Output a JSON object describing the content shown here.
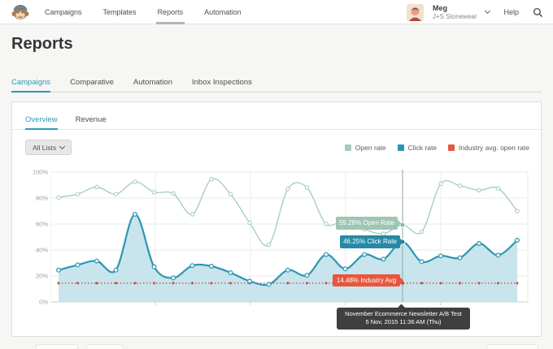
{
  "header": {
    "logo": "mailchimp-freddie",
    "nav": [
      {
        "label": "Campaigns",
        "active": false
      },
      {
        "label": "Templates",
        "active": false
      },
      {
        "label": "Reports",
        "active": true
      },
      {
        "label": "Automation",
        "active": false
      }
    ],
    "user": {
      "name": "Meg",
      "account": "J+S Stonewear"
    },
    "help_label": "Help"
  },
  "page": {
    "title": "Reports"
  },
  "tabs": [
    {
      "label": "Campaigns",
      "active": true
    },
    {
      "label": "Comparative",
      "active": false
    },
    {
      "label": "Automation",
      "active": false
    },
    {
      "label": "Inbox Inspections",
      "active": false
    }
  ],
  "card": {
    "tabs": [
      {
        "label": "Overview",
        "active": true
      },
      {
        "label": "Revenue",
        "active": false
      }
    ],
    "filter_button": {
      "label": "All Lists"
    },
    "legend": [
      {
        "label": "Open rate",
        "color": "#a3cbba"
      },
      {
        "label": "Click rate",
        "color": "#2e96b2"
      },
      {
        "label": "Industry avg. open rate",
        "color": "#e45a3f"
      }
    ]
  },
  "chart_data": {
    "type": "line",
    "title": "",
    "xlabel": "",
    "ylabel": "",
    "ylim": [
      0,
      100
    ],
    "ytick_labels": [
      "100%",
      "80%",
      "60%",
      "40%",
      "20%",
      "0%"
    ],
    "grid": true,
    "legend_position": "top-right",
    "series": [
      {
        "name": "Open rate",
        "color": "#a8cfc1",
        "marker": "circle",
        "values": [
          80.5,
          83,
          88.5,
          83,
          92.5,
          84.5,
          83.5,
          67.5,
          94.5,
          83,
          61,
          44,
          87,
          88,
          60,
          63,
          56,
          52.5,
          59.28,
          54,
          91,
          89.5,
          86,
          87.5,
          70
        ]
      },
      {
        "name": "Click rate",
        "color": "#2e96b2",
        "area_fill": "#c3e2ec",
        "marker": "circle",
        "values": [
          24.5,
          28.5,
          31.5,
          24.5,
          67.5,
          27,
          18.5,
          28,
          27.5,
          22.5,
          16,
          13.5,
          24.5,
          20.5,
          36.5,
          25.5,
          36.5,
          33,
          46.25,
          31,
          35.5,
          34,
          45,
          36,
          47.5
        ]
      },
      {
        "name": "Industry avg. open rate",
        "color": "#cc4a35",
        "style": "dotted",
        "constant_value": 14.48
      }
    ],
    "hover": {
      "index": 18,
      "open_label": "59.28% Open Rate",
      "click_label": "46.25% Click Rate",
      "industry_label": "14.48% Industry Avg",
      "tooltip_line1": "November Ecommerce Newsletter A/B Test",
      "tooltip_line2": "5 Nov, 2015 11:36 AM (Thu)",
      "badge_colors": {
        "open": "#9dc6b3",
        "click": "#2789a6",
        "industry": "#e8563d",
        "tooltip": "#3f3f3f"
      }
    }
  }
}
